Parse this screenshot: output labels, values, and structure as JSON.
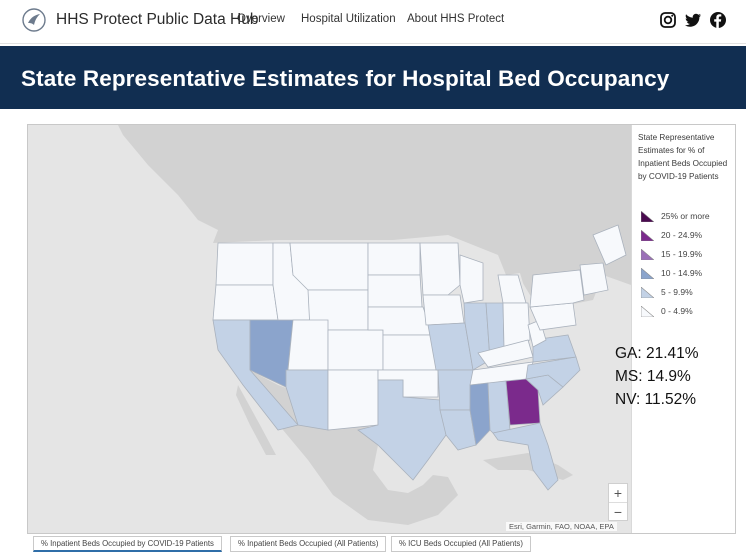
{
  "header": {
    "brand": "HHS Protect Public Data Hub",
    "nav": [
      "Overview",
      "Hospital Utilization",
      "About HHS Protect"
    ],
    "social_icons": [
      "instagram-icon",
      "twitter-icon",
      "facebook-icon"
    ]
  },
  "banner": {
    "title": "State Representative Estimates for Hospital Bed Occupancy"
  },
  "map": {
    "legend_title": "State Representative Estimates for % of Inpatient Beds Occupied by COVID-19 Patients",
    "legend": [
      {
        "label": "25% or more",
        "color": "#4a0a4f"
      },
      {
        "label": "20 - 24.9%",
        "color": "#7b2a8c"
      },
      {
        "label": "15 - 19.9%",
        "color": "#9b71b8"
      },
      {
        "label": "10 - 14.9%",
        "color": "#8ba4cc"
      },
      {
        "label": "5 - 9.9%",
        "color": "#c3d2e6"
      },
      {
        "label": "0 - 4.9%",
        "color": "#f7f9fc"
      }
    ],
    "callouts": [
      "GA: 21.41%",
      "MS: 14.9%",
      "NV: 11.52%"
    ],
    "zoom_in": "+",
    "zoom_out": "−",
    "attribution": "Esri, Garmin, FAO, NOAA, EPA",
    "colors": {
      "water": "#e5e5e5",
      "land_outside": "#d0d0d0",
      "state_border": "#aab2bd",
      "low": "#f7f9fc",
      "mid": "#c3d2e6",
      "high": "#8ba4cc",
      "ga": "#7b2a8c"
    }
  },
  "tabs": [
    {
      "label": "% Inpatient Beds Occupied by COVID-19 Patients",
      "active": true
    },
    {
      "label": "% Inpatient Beds Occupied (All Patients)",
      "active": false
    },
    {
      "label": "% ICU Beds Occupied (All Patients)",
      "active": false
    }
  ]
}
